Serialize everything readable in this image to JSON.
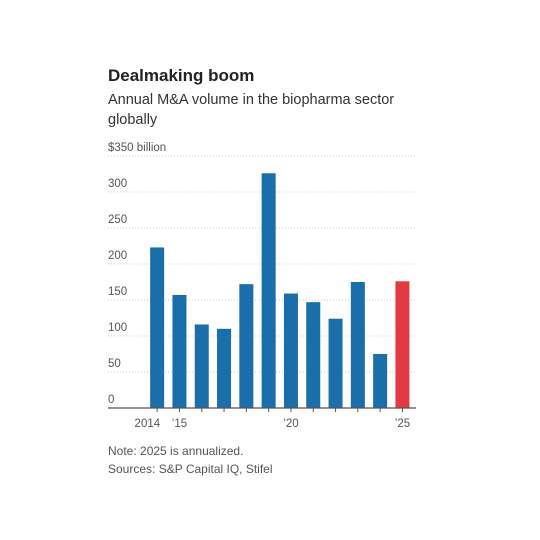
{
  "title": "Dealmaking boom",
  "subtitle": "Annual M&A volume in the biopharma sector globally",
  "note": "Note: 2025 is annualized.",
  "sources": "Sources: S&P Capital IQ, Stifel",
  "colors": {
    "bar": "#1a6eaa",
    "highlight": "#e23a45",
    "grid": "#cccccc",
    "axis": "#555555",
    "text": "#555555"
  },
  "chart_data": {
    "type": "bar",
    "categories": [
      "2014",
      "2015",
      "2016",
      "2017",
      "2018",
      "2019",
      "2020",
      "2021",
      "2022",
      "2023",
      "2024",
      "2025"
    ],
    "values": [
      223,
      157,
      116,
      110,
      172,
      326,
      159,
      147,
      124,
      175,
      75,
      176
    ],
    "highlight_index": 11,
    "ylim": [
      0,
      350
    ],
    "yticks": [
      0,
      50,
      100,
      150,
      200,
      250,
      300,
      350
    ],
    "ytick_labels": [
      "0",
      "50",
      "100",
      "150",
      "200",
      "250",
      "300",
      "$350 billion"
    ],
    "xtick_labels": [
      {
        "index": 0,
        "label": "2014"
      },
      {
        "index": 1,
        "label": "’15"
      },
      {
        "index": 6,
        "label": "’20"
      },
      {
        "index": 11,
        "label": "’25"
      }
    ],
    "grid": true
  }
}
